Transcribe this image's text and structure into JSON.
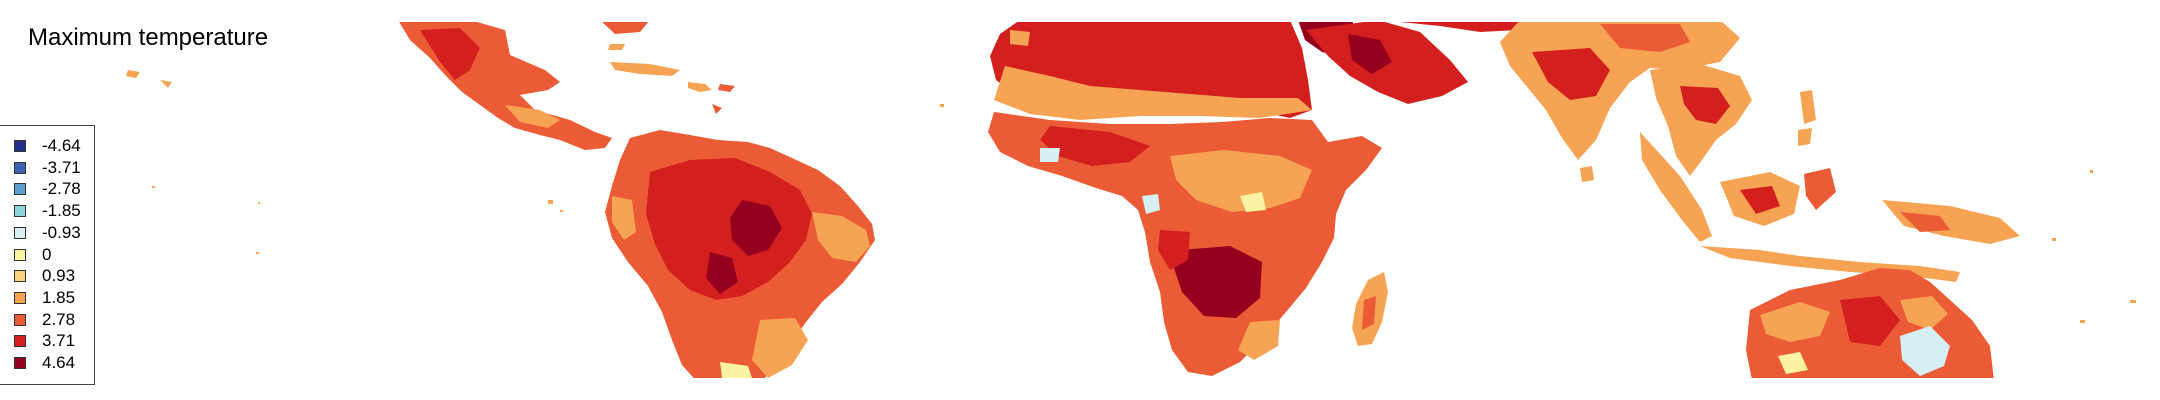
{
  "map": {
    "title": "Maximum temperature",
    "legend": [
      {
        "value": "-4.64",
        "color": "#24308b"
      },
      {
        "value": "-3.71",
        "color": "#3d62b4"
      },
      {
        "value": "-2.78",
        "color": "#5f9fce"
      },
      {
        "value": "-1.85",
        "color": "#8fd3dd"
      },
      {
        "value": "-0.93",
        "color": "#d5eff3"
      },
      {
        "value": "0",
        "color": "#fcf3a4"
      },
      {
        "value": "0.93",
        "color": "#fbd37e"
      },
      {
        "value": "1.85",
        "color": "#f7a354"
      },
      {
        "value": "2.78",
        "color": "#eb5b35"
      },
      {
        "value": "3.71",
        "color": "#d3201f"
      },
      {
        "value": "4.64",
        "color": "#95001e"
      }
    ],
    "regions": [
      "central-america",
      "caribbean",
      "south-america",
      "north-africa",
      "arabian-peninsula",
      "africa",
      "madagascar",
      "south-asia",
      "southeast-asia",
      "maritime-southeast-asia",
      "australia"
    ]
  }
}
